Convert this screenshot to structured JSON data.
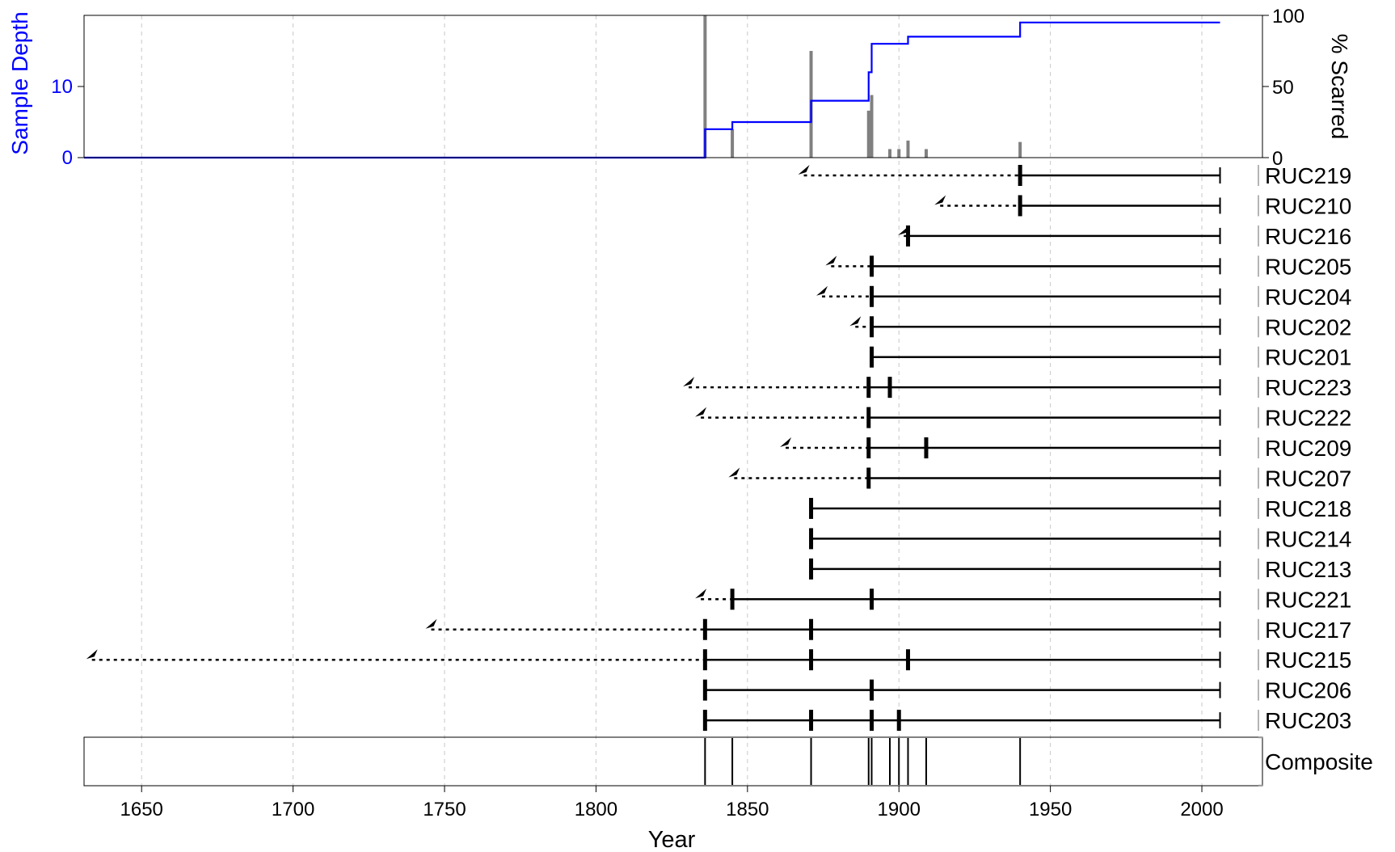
{
  "chart_data": {
    "type": "fire-history",
    "xlabel": "Year",
    "xlim": [
      1631,
      2020
    ],
    "xticks": [
      1650,
      1700,
      1750,
      1800,
      1850,
      1900,
      1950,
      2000
    ],
    "sample_depth": {
      "ylabel": "Sample Depth",
      "ylim": [
        0,
        20
      ],
      "yticks": [
        0,
        10
      ],
      "color": "#0000ff",
      "steps": [
        {
          "year": 1631,
          "depth": 0
        },
        {
          "year": 1836,
          "depth": 4
        },
        {
          "year": 1845,
          "depth": 5
        },
        {
          "year": 1871,
          "depth": 8
        },
        {
          "year": 1890,
          "depth": 12
        },
        {
          "year": 1891,
          "depth": 16
        },
        {
          "year": 1903,
          "depth": 17
        },
        {
          "year": 1940,
          "depth": 19
        },
        {
          "year": 2006,
          "depth": 19
        }
      ]
    },
    "percent_scarred": {
      "ylabel": "% Scarred",
      "ylim": [
        0,
        100
      ],
      "yticks": [
        0,
        50,
        100
      ],
      "color": "#808080",
      "bars": [
        {
          "year": 1836,
          "value": 100
        },
        {
          "year": 1845,
          "value": 20
        },
        {
          "year": 1871,
          "value": 75
        },
        {
          "year": 1890,
          "value": 33
        },
        {
          "year": 1891,
          "value": 44
        },
        {
          "year": 1897,
          "value": 6
        },
        {
          "year": 1900,
          "value": 6
        },
        {
          "year": 1903,
          "value": 12
        },
        {
          "year": 1909,
          "value": 6
        },
        {
          "year": 1940,
          "value": 11
        }
      ]
    },
    "series": [
      {
        "name": "RUC219",
        "inner": 1867,
        "recorder_start": 1940,
        "end": 2006,
        "scars": [
          1940
        ]
      },
      {
        "name": "RUC210",
        "inner": 1912,
        "recorder_start": 1940,
        "end": 2006,
        "scars": [
          1940
        ]
      },
      {
        "name": "RUC216",
        "inner": 1900,
        "recorder_start": 1903,
        "end": 2006,
        "scars": [
          1903
        ]
      },
      {
        "name": "RUC205",
        "inner": 1876,
        "recorder_start": 1891,
        "end": 2006,
        "scars": [
          1891
        ]
      },
      {
        "name": "RUC204",
        "inner": 1873,
        "recorder_start": 1891,
        "end": 2006,
        "scars": [
          1891
        ]
      },
      {
        "name": "RUC202",
        "inner": 1884,
        "recorder_start": 1891,
        "end": 2006,
        "scars": [
          1891
        ]
      },
      {
        "name": "RUC201",
        "inner": null,
        "recorder_start": 1891,
        "end": 2006,
        "scars": [
          1891
        ]
      },
      {
        "name": "RUC223",
        "inner": 1829,
        "recorder_start": 1890,
        "end": 2006,
        "scars": [
          1890,
          1897
        ]
      },
      {
        "name": "RUC222",
        "inner": 1833,
        "recorder_start": 1890,
        "end": 2006,
        "scars": [
          1890
        ]
      },
      {
        "name": "RUC209",
        "inner": 1861,
        "recorder_start": 1890,
        "end": 2006,
        "scars": [
          1890,
          1909
        ]
      },
      {
        "name": "RUC207",
        "inner": 1844,
        "recorder_start": 1890,
        "end": 2006,
        "scars": [
          1890
        ]
      },
      {
        "name": "RUC218",
        "inner": null,
        "recorder_start": 1871,
        "end": 2006,
        "scars": [
          1871
        ]
      },
      {
        "name": "RUC214",
        "inner": null,
        "recorder_start": 1871,
        "end": 2006,
        "scars": [
          1871
        ]
      },
      {
        "name": "RUC213",
        "inner": null,
        "recorder_start": 1871,
        "end": 2006,
        "scars": [
          1871
        ]
      },
      {
        "name": "RUC221",
        "inner": 1833,
        "recorder_start": 1845,
        "end": 2006,
        "scars": [
          1845,
          1891
        ]
      },
      {
        "name": "RUC217",
        "inner": 1744,
        "recorder_start": 1836,
        "end": 2006,
        "scars": [
          1836,
          1871
        ]
      },
      {
        "name": "RUC215",
        "inner": 1632,
        "recorder_start": 1836,
        "end": 2006,
        "scars": [
          1836,
          1871,
          1903
        ]
      },
      {
        "name": "RUC206",
        "inner": null,
        "recorder_start": 1836,
        "end": 2006,
        "scars": [
          1836,
          1891
        ]
      },
      {
        "name": "RUC203",
        "inner": null,
        "recorder_start": 1836,
        "end": 2006,
        "scars": [
          1836,
          1871,
          1891,
          1900
        ]
      }
    ],
    "composite": {
      "name": "Composite",
      "events": [
        1836,
        1845,
        1871,
        1890,
        1891,
        1897,
        1900,
        1903,
        1909,
        1940
      ]
    }
  }
}
